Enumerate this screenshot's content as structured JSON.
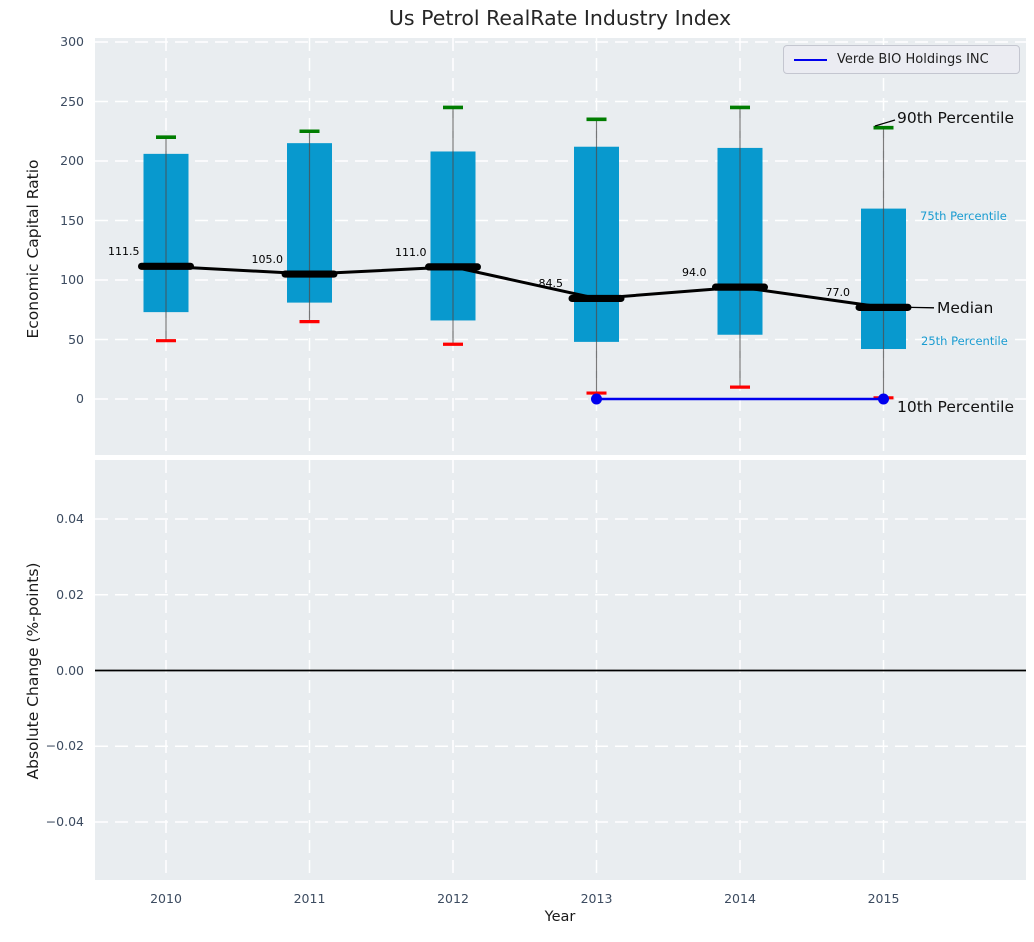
{
  "title": "Us Petrol RealRate Industry Index",
  "legend": {
    "label": "Verde BIO Holdings INC"
  },
  "annotations": {
    "p90": "90th Percentile",
    "p75": "75th Percentile",
    "median": "Median",
    "p25": "25th Percentile",
    "p10": "10th Percentile"
  },
  "colors": {
    "axes_bg": "#e9edf0",
    "grid": "#ffffff",
    "box_fill": "#0899ce",
    "whisker": "#4d4d4d",
    "cap_high": "#007d00",
    "cap_low": "#fe0000",
    "median": "#000000",
    "company_line": "#0000ee",
    "tick_label": "#3c4b60",
    "small_pct_label": "#1a9cd1",
    "zero_line": "#000000"
  },
  "chart_data": {
    "type": "boxplot",
    "title": "Us Petrol RealRate Industry Index",
    "xlabel": "Year",
    "categories": [
      "2010",
      "2011",
      "2012",
      "2013",
      "2014",
      "2015"
    ],
    "legend_entries": [
      "Verde BIO Holdings INC"
    ],
    "top_panel": {
      "ylabel": "Economic Capital Ratio",
      "ylim": [
        -50,
        303
      ],
      "yticks": [
        0,
        50,
        100,
        150,
        200,
        250,
        300
      ],
      "grid": true,
      "series": {
        "p90": [
          220,
          225,
          245,
          235,
          245,
          228
        ],
        "p75": [
          206,
          215,
          208,
          212,
          211,
          160
        ],
        "median": [
          111.5,
          105.0,
          111.0,
          84.5,
          94.0,
          77.0
        ],
        "p25": [
          73,
          81,
          66,
          48,
          54,
          42
        ],
        "p10": [
          49,
          65,
          46,
          5,
          10,
          1
        ]
      },
      "median_labels": [
        "111.5",
        "105.0",
        "111.0",
        "84.5",
        "94.0",
        "77.0"
      ],
      "company_line": {
        "name": "Verde BIO Holdings INC",
        "points": [
          {
            "x": "2013",
            "y": 0
          },
          {
            "x": "2015",
            "y": 0
          }
        ]
      }
    },
    "bottom_panel": {
      "ylabel": "Absolute Change (%-points)",
      "ylim": [
        -0.055,
        0.055
      ],
      "ytick_labels": [
        "0.04",
        "0.02",
        "0.00",
        "−0.02",
        "−0.04"
      ],
      "ytick_values": [
        0.04,
        0.02,
        0.0,
        -0.02,
        -0.04
      ],
      "grid": true,
      "zero_line": 0.0
    }
  }
}
